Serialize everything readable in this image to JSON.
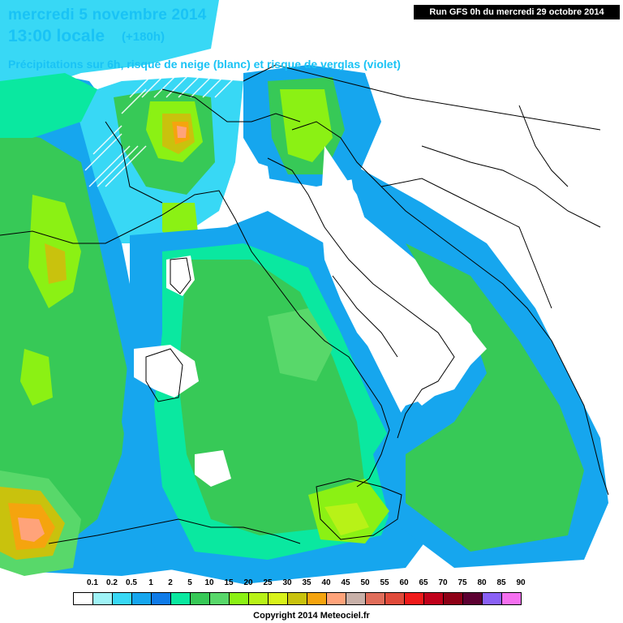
{
  "header": {
    "date_line": "mercredi 5 novembre 2014",
    "time_line": "13:00 locale",
    "time_offset": "(+180h)",
    "subtitle": "Précipitations sur 6h, risque de neige (blanc) et risque de verglas (violet)",
    "run_info": "Run GFS 0h du mercredi 29 octobre 2014"
  },
  "legend": {
    "labels": [
      "0.1",
      "0.2",
      "0.5",
      "1",
      "2",
      "5",
      "10",
      "15",
      "20",
      "25",
      "30",
      "35",
      "40",
      "45",
      "50",
      "55",
      "60",
      "65",
      "70",
      "75",
      "80",
      "85",
      "90"
    ],
    "colors": [
      "#ffffff",
      "#9ff3f7",
      "#38d8f5",
      "#16a6ee",
      "#0f7be8",
      "#0ae8a0",
      "#37c957",
      "#58d86a",
      "#8bf114",
      "#b8f217",
      "#d8f21a",
      "#c9c20d",
      "#f5a40e",
      "#ffa37a",
      "#c8b0a8",
      "#e06d5a",
      "#e04a3a",
      "#f01a1a",
      "#c0001a",
      "#8e0016",
      "#5c0031",
      "#8a60f5",
      "#f570f0"
    ]
  },
  "copyright": "Copyright 2014 Meteociel.fr",
  "map_colors": {
    "light_cyan": "#9ff3f7",
    "cyan": "#38d8f5",
    "blue": "#16a6ee",
    "teal": "#0ae8a0",
    "green": "#37c957",
    "green_mid": "#58d86a",
    "lime": "#8bf114",
    "yellow_green": "#b8f217",
    "olive": "#c9c20d",
    "orange": "#f5a40e",
    "salmon": "#ffa37a",
    "land_outline": "#000000"
  }
}
